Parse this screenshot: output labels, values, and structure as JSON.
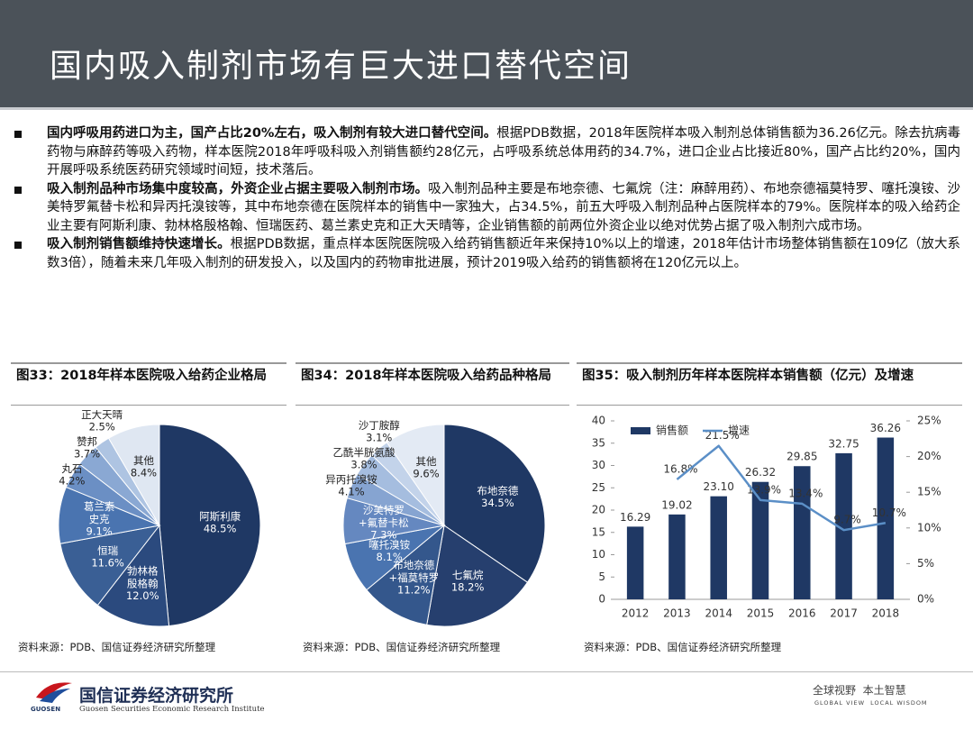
{
  "header": {
    "title": "国内吸入制剂市场有巨大进口替代空间"
  },
  "bullets": [
    {
      "bold": "国内呼吸用药进口为主，国产占比20%左右，吸入制剂有较大进口替代空间。",
      "text": "根据PDB数据，2018年医院样本吸入制剂总体销售额为36.26亿元。除去抗病毒药物与麻醉药等吸入药物，样本医院2018年呼吸科吸入剂销售额约28亿元，占呼吸系统总体用药的34.7%，进口企业占比接近80%，国产占比约20%，国内开展呼吸系统医药研究领域时间短，技术落后。"
    },
    {
      "bold": "吸入制剂品种市场集中度较高，外资企业占据主要吸入制剂市场。",
      "text": "吸入制剂品种主要是布地奈德、七氟烷（注：麻醉用药）、布地奈德福莫特罗、噻托溴铵、沙美特罗氟替卡松和异丙托溴铵等，其中布地奈德在医院样本的销售中一家独大，占34.5%，前五大呼吸入制剂品种占医院样本的79%。医院样本的吸入给药企业主要有阿斯利康、勃林格殷格翰、恒瑞医药、葛兰素史克和正大天晴等，企业销售额的前两位外资企业以绝对优势占据了吸入制剂六成市场。"
    },
    {
      "bold": "吸入制剂销售额维持快速增长。",
      "text": "根据PDB数据，重点样本医院医院吸入给药销售额近年来保持10%以上的增速，2018年估计市场整体销售额在109亿（放大系数3倍），随着未来几年吸入制剂的研发投入，以及国内的药物审批进展，预计2019吸入给药的销售额将在120亿元以上。"
    }
  ],
  "chart_data": [
    {
      "type": "pie",
      "title": "图33：2018年样本医院吸入给药企业格局",
      "categories": [
        "阿斯利康",
        "勃林格殷格翰",
        "恒瑞",
        "葛兰素史克",
        "丸石",
        "赞邦",
        "正大天晴",
        "其他"
      ],
      "values": [
        48.5,
        12.0,
        11.6,
        9.1,
        4.2,
        3.7,
        2.5,
        8.4
      ],
      "value_labels": [
        "48.5%",
        "12.0%",
        "11.6%",
        "9.1%",
        "4.2%",
        "3.7%",
        "2.5%",
        "8.4%"
      ],
      "colors": [
        "#1f3864",
        "#2b4a7e",
        "#3a5f95",
        "#4a74b0",
        "#6b8fc4",
        "#8aa8d3",
        "#aec4e2",
        "#dfe7f2"
      ],
      "source": "资料来源：PDB、国信证券经济研究所整理"
    },
    {
      "type": "pie",
      "title": "图34：2018年样本医院吸入给药品种格局",
      "categories": [
        "布地奈德",
        "七氟烷",
        "布地奈德+福莫特罗",
        "噻托溴铵",
        "沙美特罗+氟替卡松",
        "异丙托溴铵",
        "乙酰半胱氨酸",
        "沙丁胺醇",
        "其他"
      ],
      "values": [
        34.5,
        18.2,
        11.2,
        8.1,
        7.3,
        4.1,
        3.8,
        3.1,
        9.6
      ],
      "value_labels": [
        "34.5%",
        "18.2%",
        "11.2%",
        "8.1%",
        "7.3%",
        "4.1%",
        "3.8%",
        "3.1%",
        "9.6%"
      ],
      "colors": [
        "#1f3864",
        "#263f6e",
        "#34578c",
        "#4a74b0",
        "#6588c0",
        "#86a4d1",
        "#a5bddf",
        "#c3d3ea",
        "#e3eaf4"
      ],
      "source": "资料来源：PDB、国信证券经济研究所整理"
    },
    {
      "type": "bar_line",
      "title": "图35：吸入制剂历年样本医院样本销售额（亿元）及增速",
      "categories": [
        "2012",
        "2013",
        "2014",
        "2015",
        "2016",
        "2017",
        "2018"
      ],
      "series": [
        {
          "name": "销售额",
          "type": "bar",
          "color": "#1f3864",
          "values": [
            16.29,
            19.02,
            23.1,
            26.32,
            29.85,
            32.75,
            36.26
          ],
          "value_labels": [
            "16.29",
            "19.02",
            "23.10",
            "26.32",
            "29.85",
            "32.75",
            "36.26"
          ]
        },
        {
          "name": "增速",
          "type": "line",
          "axis": "y2",
          "color": "#5b8fc7",
          "values": [
            null,
            16.8,
            21.5,
            13.9,
            13.4,
            9.7,
            10.7
          ],
          "value_labels": [
            null,
            "16.8%",
            "21.5%",
            "13.9%",
            "13.4%",
            "9.7%",
            "10.7%"
          ]
        }
      ],
      "ylim": [
        0,
        40
      ],
      "yticks": [
        0,
        5,
        10,
        15,
        20,
        25,
        30,
        35,
        40
      ],
      "y2lim": [
        0,
        25
      ],
      "y2ticks": [
        {
          "value": 0,
          "label": "0%"
        },
        {
          "value": 5,
          "label": "5%"
        },
        {
          "value": 10,
          "label": "10%"
        },
        {
          "value": 15,
          "label": "15%"
        },
        {
          "value": 20,
          "label": "20%"
        },
        {
          "value": 25,
          "label": "25%"
        }
      ],
      "source": "资料来源：PDB、国信证券经济研究所整理"
    }
  ],
  "footer": {
    "org": "国信证券经济研究所",
    "org_en": "Guosen Securities Economic Research Institute",
    "logo_text": "GUOSEN",
    "slogan": "全球视野  本土智慧",
    "slogan_en": "GLOBAL VIEW  LOCAL WISDOM"
  }
}
